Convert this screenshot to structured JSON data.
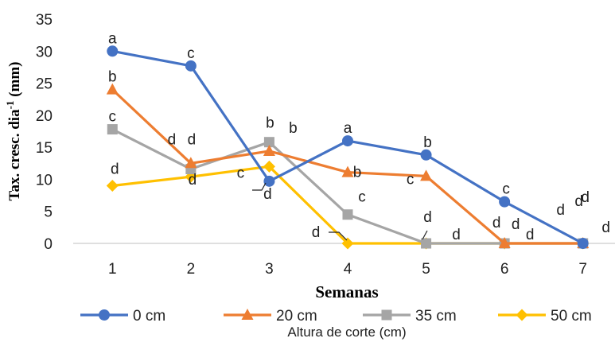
{
  "chart_data": {
    "type": "line",
    "title": "",
    "xlabel": "Semanas",
    "ylabel_main": "Tax. cresc. dia",
    "ylabel_sup": "-1",
    "ylabel_unit": " (mm)",
    "legend_title": "Altura de corte  (cm)",
    "legend_position": "bottom",
    "grid": false,
    "x": [
      1,
      2,
      3,
      4,
      5,
      6,
      7
    ],
    "xlim": [
      0.5,
      7.5
    ],
    "ylim": [
      0,
      35
    ],
    "y_ticks": [
      0,
      5,
      10,
      15,
      20,
      25,
      30,
      35
    ],
    "series": [
      {
        "name": "0 cm",
        "color": "#4472C4",
        "marker": "circle",
        "values": [
          30,
          27.7,
          9.7,
          16,
          13.8,
          6.5,
          0
        ],
        "labels": [
          "a",
          "c",
          "d",
          "a",
          "b",
          "c",
          "d"
        ]
      },
      {
        "name": "20 cm",
        "color": "#ED7D31",
        "marker": "triangle",
        "values": [
          24,
          12.5,
          14.4,
          11.1,
          10.5,
          0,
          0
        ],
        "labels": [
          "b",
          "d",
          "b",
          "b",
          "c",
          "d",
          "d"
        ]
      },
      {
        "name": "35 cm",
        "color": "#A5A5A5",
        "marker": "square",
        "values": [
          17.8,
          11.6,
          15.8,
          4.5,
          0,
          0,
          0
        ],
        "labels": [
          "c",
          "d",
          "b",
          "c",
          "d",
          "d",
          "d"
        ]
      },
      {
        "name": "50 cm",
        "color": "#FFC000",
        "marker": "diamond",
        "values": [
          9,
          10.4,
          12,
          0,
          0,
          0,
          0
        ],
        "labels": [
          "d",
          "d",
          "c",
          "d",
          "d",
          "d",
          "d"
        ]
      }
    ]
  }
}
